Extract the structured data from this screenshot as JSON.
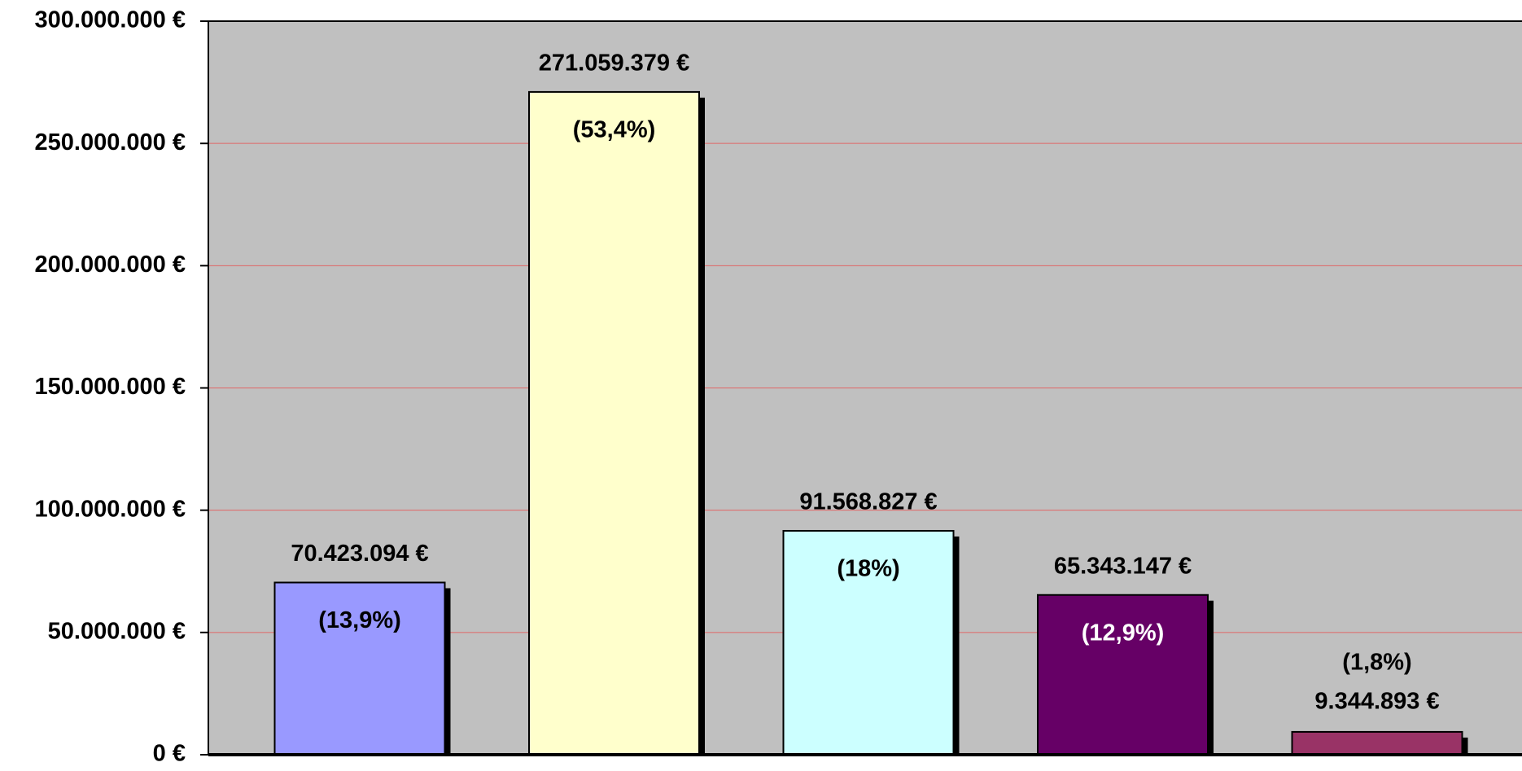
{
  "chart_data": {
    "type": "bar",
    "categories": [
      null,
      null,
      null,
      null,
      null
    ],
    "values": [
      70423094,
      271059379,
      91568827,
      65343147,
      9344893
    ],
    "value_labels": [
      "70.423.094 €",
      "271.059.379 €",
      "91.568.827 €",
      "65.343.147 €",
      "9.344.893 €"
    ],
    "percent_labels": [
      "(13,9%)",
      "(53,4%)",
      "(18%)",
      "(12,9%)",
      "(1,8%)"
    ],
    "colors": [
      "#9999ff",
      "#ffffcc",
      "#ccffff",
      "#660066",
      "#993366"
    ],
    "ylim": [
      0,
      300000000
    ],
    "yticks": [
      {
        "value": 0,
        "label": "0 €"
      },
      {
        "value": 50000000,
        "label": "50.000.000 €"
      },
      {
        "value": 100000000,
        "label": "100.000.000 €"
      },
      {
        "value": 150000000,
        "label": "150.000.000 €"
      },
      {
        "value": 200000000,
        "label": "200.000.000 €"
      },
      {
        "value": 250000000,
        "label": "250.000.000 €"
      },
      {
        "value": 300000000,
        "label": "300.000.000 €"
      }
    ],
    "grid": true,
    "grid_color": "#e06666",
    "plot_background": "#c0c0c0"
  }
}
